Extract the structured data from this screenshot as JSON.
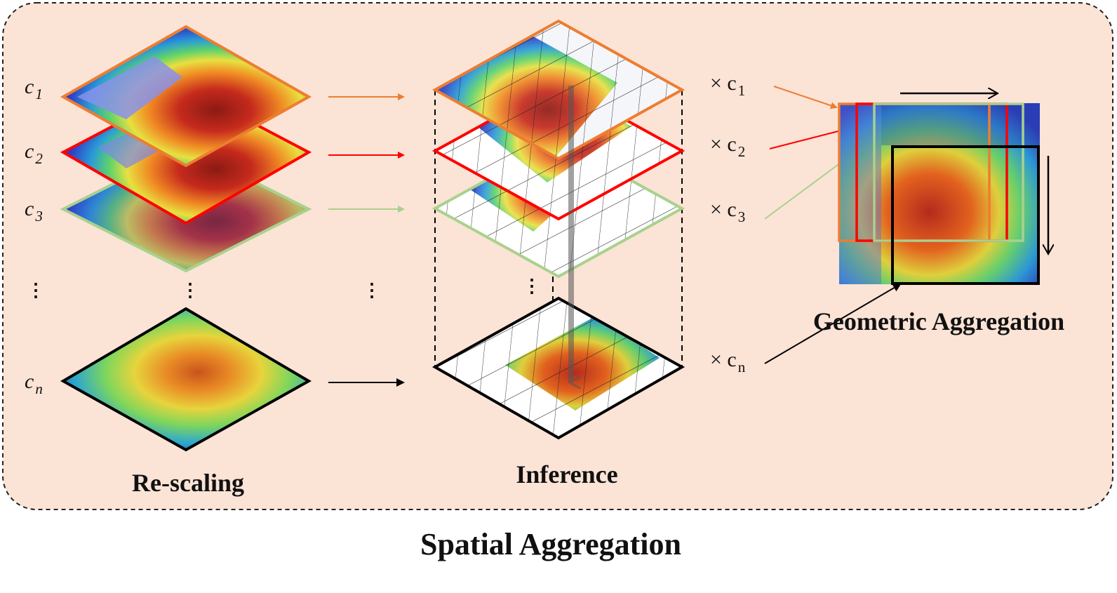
{
  "title": "Spatial Aggregation",
  "sections": {
    "rescaling": "Re-scaling",
    "inference": "Inference",
    "geometric": "Geometric Aggregation"
  },
  "scale_labels": {
    "c1": {
      "base": "c",
      "sub": "1"
    },
    "c2": {
      "base": "c",
      "sub": "2"
    },
    "c3": {
      "base": "c",
      "sub": "3"
    },
    "cn": {
      "base": "c",
      "sub": "n"
    }
  },
  "multipliers": {
    "c1": {
      "prefix": "× c",
      "sub": "1"
    },
    "c2": {
      "prefix": "× c",
      "sub": "2"
    },
    "c3": {
      "prefix": "× c",
      "sub": "3"
    },
    "cn": {
      "prefix": "× c",
      "sub": "n"
    }
  },
  "ellipsis": "⋮",
  "colors": {
    "panel_bg": "#fbe3d6",
    "c1": "#ed7d31",
    "c2": "#ff0000",
    "c3": "#a9d18e",
    "cn": "#000000",
    "heat_cold": "#2d3fc8",
    "heat_mid": "#8ee04a",
    "heat_hot": "#c62a1c"
  }
}
